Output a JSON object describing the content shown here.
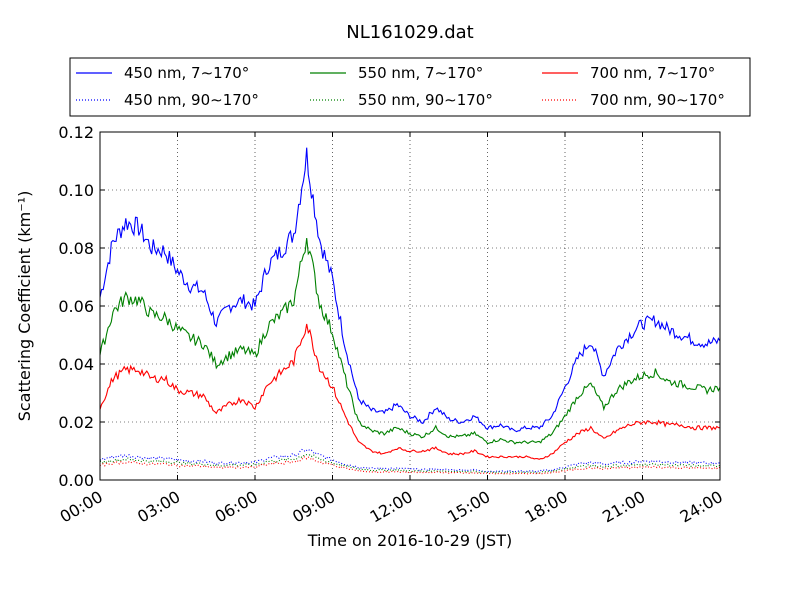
{
  "chart_data": {
    "type": "line",
    "title": "NL161029.dat",
    "xlabel": "Time on 2016-10-29 (JST)",
    "ylabel": "Scattering Coefficient (km⁻¹)",
    "xlim": [
      0,
      24
    ],
    "ylim": [
      0,
      0.12
    ],
    "x_ticks": [
      "00:00",
      "03:00",
      "06:00",
      "09:00",
      "12:00",
      "15:00",
      "18:00",
      "21:00",
      "24:00"
    ],
    "y_ticks": [
      "0.00",
      "0.02",
      "0.04",
      "0.06",
      "0.08",
      "0.10",
      "0.12"
    ],
    "grid": true,
    "legend_position": "top",
    "x_hours": [
      0,
      0.5,
      1,
      1.5,
      2,
      2.5,
      3,
      3.5,
      4,
      4.5,
      5,
      5.5,
      6,
      6.5,
      7,
      7.5,
      8,
      8.5,
      9,
      9.5,
      10,
      10.5,
      11,
      11.5,
      12,
      12.5,
      13,
      13.5,
      14,
      14.5,
      15,
      15.5,
      16,
      16.5,
      17,
      17.5,
      18,
      18.5,
      19,
      19.5,
      20,
      20.5,
      21,
      21.5,
      22,
      22.5,
      23,
      23.5,
      24
    ],
    "series": [
      {
        "name": "450 nm, 7∼170°",
        "color": "#0000ff",
        "style": "solid",
        "values": [
          0.063,
          0.082,
          0.089,
          0.087,
          0.08,
          0.079,
          0.072,
          0.067,
          0.065,
          0.054,
          0.06,
          0.062,
          0.06,
          0.074,
          0.079,
          0.085,
          0.112,
          0.083,
          0.069,
          0.046,
          0.028,
          0.024,
          0.023,
          0.026,
          0.022,
          0.02,
          0.025,
          0.021,
          0.02,
          0.022,
          0.018,
          0.019,
          0.017,
          0.018,
          0.018,
          0.022,
          0.032,
          0.042,
          0.048,
          0.036,
          0.045,
          0.05,
          0.054,
          0.055,
          0.052,
          0.05,
          0.048,
          0.047,
          0.048
        ]
      },
      {
        "name": "450 nm, 90∼170°",
        "color": "#0000ff",
        "style": "dotted",
        "values": [
          0.007,
          0.008,
          0.0085,
          0.008,
          0.0075,
          0.0075,
          0.007,
          0.0065,
          0.0065,
          0.0058,
          0.006,
          0.006,
          0.006,
          0.0075,
          0.008,
          0.0085,
          0.0105,
          0.0085,
          0.007,
          0.0055,
          0.0045,
          0.004,
          0.004,
          0.004,
          0.0038,
          0.0035,
          0.0038,
          0.0035,
          0.0035,
          0.0035,
          0.003,
          0.003,
          0.003,
          0.003,
          0.003,
          0.0035,
          0.0045,
          0.0055,
          0.006,
          0.0055,
          0.006,
          0.006,
          0.0065,
          0.0065,
          0.0062,
          0.006,
          0.006,
          0.0058,
          0.006
        ]
      },
      {
        "name": "550 nm, 7∼170°",
        "color": "#008000",
        "style": "solid",
        "values": [
          0.043,
          0.058,
          0.063,
          0.062,
          0.057,
          0.056,
          0.052,
          0.049,
          0.047,
          0.04,
          0.043,
          0.045,
          0.043,
          0.053,
          0.057,
          0.062,
          0.084,
          0.061,
          0.051,
          0.035,
          0.02,
          0.017,
          0.016,
          0.018,
          0.016,
          0.015,
          0.018,
          0.015,
          0.015,
          0.016,
          0.013,
          0.014,
          0.013,
          0.013,
          0.013,
          0.016,
          0.022,
          0.029,
          0.033,
          0.025,
          0.031,
          0.034,
          0.036,
          0.037,
          0.034,
          0.033,
          0.032,
          0.031,
          0.032
        ]
      },
      {
        "name": "550 nm, 90∼170°",
        "color": "#008000",
        "style": "dotted",
        "values": [
          0.006,
          0.0068,
          0.0072,
          0.0068,
          0.0064,
          0.0064,
          0.006,
          0.0056,
          0.0056,
          0.005,
          0.0052,
          0.0052,
          0.0052,
          0.0064,
          0.0068,
          0.0072,
          0.009,
          0.0072,
          0.006,
          0.0048,
          0.0038,
          0.0034,
          0.0034,
          0.0034,
          0.0032,
          0.003,
          0.0032,
          0.003,
          0.003,
          0.003,
          0.0026,
          0.0026,
          0.0026,
          0.0026,
          0.0026,
          0.003,
          0.0038,
          0.0046,
          0.005,
          0.0046,
          0.005,
          0.005,
          0.0054,
          0.0054,
          0.0052,
          0.005,
          0.005,
          0.0048,
          0.005
        ]
      },
      {
        "name": "700 nm, 7∼170°",
        "color": "#ff0000",
        "style": "solid",
        "values": [
          0.025,
          0.035,
          0.038,
          0.038,
          0.035,
          0.035,
          0.031,
          0.03,
          0.029,
          0.023,
          0.026,
          0.028,
          0.025,
          0.033,
          0.037,
          0.041,
          0.054,
          0.039,
          0.032,
          0.022,
          0.013,
          0.01,
          0.009,
          0.011,
          0.01,
          0.01,
          0.011,
          0.009,
          0.009,
          0.01,
          0.008,
          0.008,
          0.008,
          0.008,
          0.007,
          0.009,
          0.013,
          0.016,
          0.018,
          0.014,
          0.017,
          0.019,
          0.02,
          0.02,
          0.019,
          0.019,
          0.018,
          0.018,
          0.018
        ]
      },
      {
        "name": "700 nm, 90∼170°",
        "color": "#ff0000",
        "style": "dotted",
        "values": [
          0.005,
          0.0058,
          0.0062,
          0.0058,
          0.0055,
          0.0055,
          0.005,
          0.0048,
          0.0048,
          0.0042,
          0.0044,
          0.0044,
          0.0044,
          0.0055,
          0.0058,
          0.0062,
          0.0078,
          0.0062,
          0.0052,
          0.004,
          0.0032,
          0.0028,
          0.0028,
          0.0028,
          0.0027,
          0.0025,
          0.0027,
          0.0025,
          0.0025,
          0.0025,
          0.0022,
          0.0022,
          0.0022,
          0.0022,
          0.0022,
          0.0025,
          0.0032,
          0.0038,
          0.0042,
          0.0038,
          0.0042,
          0.0042,
          0.0045,
          0.0045,
          0.0043,
          0.0042,
          0.0042,
          0.004,
          0.0042
        ]
      }
    ]
  }
}
